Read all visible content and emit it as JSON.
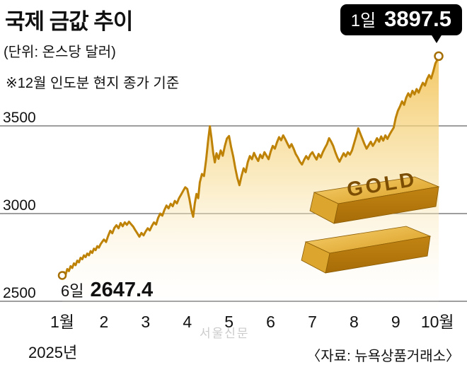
{
  "header": {
    "title": "국제 금값 추이",
    "unit": "(단위: 온스당 달러)",
    "note": "※12월 인도분 현지 종가 기준"
  },
  "callout": {
    "day": "1일",
    "value": "3897.5"
  },
  "start_label": {
    "day": "6일",
    "value": "2647.4"
  },
  "gold_bar_label": "GOLD",
  "watermark": "서울신문",
  "source": "〈자료: 뉴욕상품거래소〉",
  "axis": {
    "year_label": "2025년",
    "y_ticks": [
      {
        "label": "3500",
        "value": 3500
      },
      {
        "label": "3000",
        "value": 3000
      },
      {
        "label": "2500",
        "value": 2500
      }
    ],
    "x_ticks": [
      {
        "label": "1월",
        "month": 1
      },
      {
        "label": "2",
        "month": 2
      },
      {
        "label": "3",
        "month": 3
      },
      {
        "label": "4",
        "month": 4
      },
      {
        "label": "5",
        "month": 5
      },
      {
        "label": "6",
        "month": 6
      },
      {
        "label": "7",
        "month": 7
      },
      {
        "label": "8",
        "month": 8
      },
      {
        "label": "9",
        "month": 9
      },
      {
        "label": "10월",
        "month": 10
      }
    ]
  },
  "colors": {
    "line": "#BE8206",
    "marker_ring": "#A66F05",
    "callout_bg": "#000000",
    "area_top": "#F1BC45",
    "grid": "#3c3c3c"
  },
  "chart_data": {
    "type": "line",
    "title": "국제 금값 추이",
    "unit": "달러/온스 (12월 인도분 현지 종가)",
    "x_range_months": [
      1,
      10.03
    ],
    "ylim": [
      2450,
      3950
    ],
    "grid": true,
    "start_point": {
      "date": "1월 6일",
      "value": 2647.4
    },
    "end_point": {
      "date": "10월 1일",
      "value": 3897.5
    },
    "points": [
      [
        1,
        2647.4
      ],
      [
        1.04,
        2666
      ],
      [
        1.08,
        2652
      ],
      [
        1.12,
        2684
      ],
      [
        1.16,
        2672
      ],
      [
        1.2,
        2700
      ],
      [
        1.24,
        2690
      ],
      [
        1.28,
        2716
      ],
      [
        1.32,
        2706
      ],
      [
        1.36,
        2732
      ],
      [
        1.4,
        2722
      ],
      [
        1.44,
        2748
      ],
      [
        1.48,
        2740
      ],
      [
        1.52,
        2762
      ],
      [
        1.56,
        2752
      ],
      [
        1.6,
        2772
      ],
      [
        1.64,
        2762
      ],
      [
        1.68,
        2786
      ],
      [
        1.72,
        2776
      ],
      [
        1.76,
        2800
      ],
      [
        1.8,
        2792
      ],
      [
        1.84,
        2814
      ],
      [
        1.88,
        2806
      ],
      [
        1.92,
        2826
      ],
      [
        1.96,
        2840
      ],
      [
        2,
        2852
      ],
      [
        2.05,
        2838
      ],
      [
        2.1,
        2872
      ],
      [
        2.15,
        2902
      ],
      [
        2.2,
        2888
      ],
      [
        2.25,
        2918
      ],
      [
        2.3,
        2934
      ],
      [
        2.35,
        2916
      ],
      [
        2.4,
        2946
      ],
      [
        2.45,
        2928
      ],
      [
        2.5,
        2950
      ],
      [
        2.55,
        2936
      ],
      [
        2.6,
        2954
      ],
      [
        2.65,
        2940
      ],
      [
        2.7,
        2926
      ],
      [
        2.75,
        2906
      ],
      [
        2.8,
        2888
      ],
      [
        2.85,
        2868
      ],
      [
        2.9,
        2890
      ],
      [
        2.95,
        2876
      ],
      [
        3,
        2898
      ],
      [
        3.05,
        2916
      ],
      [
        3.1,
        2904
      ],
      [
        3.15,
        2930
      ],
      [
        3.2,
        2950
      ],
      [
        3.25,
        2938
      ],
      [
        3.3,
        2976
      ],
      [
        3.35,
        3000
      ],
      [
        3.4,
        2988
      ],
      [
        3.45,
        3020
      ],
      [
        3.5,
        3046
      ],
      [
        3.55,
        3030
      ],
      [
        3.6,
        3056
      ],
      [
        3.65,
        3042
      ],
      [
        3.7,
        3072
      ],
      [
        3.75,
        3058
      ],
      [
        3.8,
        3088
      ],
      [
        3.85,
        3108
      ],
      [
        3.9,
        3130
      ],
      [
        3.95,
        3150
      ],
      [
        4,
        3140
      ],
      [
        4.05,
        3084
      ],
      [
        4.1,
        3018
      ],
      [
        4.14,
        2982
      ],
      [
        4.18,
        3058
      ],
      [
        4.22,
        3112
      ],
      [
        4.26,
        3088
      ],
      [
        4.3,
        3178
      ],
      [
        4.35,
        3226
      ],
      [
        4.4,
        3214
      ],
      [
        4.45,
        3306
      ],
      [
        4.5,
        3418
      ],
      [
        4.54,
        3498
      ],
      [
        4.58,
        3430
      ],
      [
        4.62,
        3346
      ],
      [
        4.66,
        3292
      ],
      [
        4.7,
        3344
      ],
      [
        4.75,
        3312
      ],
      [
        4.8,
        3360
      ],
      [
        4.85,
        3330
      ],
      [
        4.9,
        3386
      ],
      [
        4.95,
        3428
      ],
      [
        5,
        3442
      ],
      [
        5.05,
        3380
      ],
      [
        5.1,
        3326
      ],
      [
        5.15,
        3260
      ],
      [
        5.2,
        3204
      ],
      [
        5.25,
        3162
      ],
      [
        5.3,
        3214
      ],
      [
        5.35,
        3258
      ],
      [
        5.4,
        3236
      ],
      [
        5.45,
        3294
      ],
      [
        5.5,
        3328
      ],
      [
        5.55,
        3310
      ],
      [
        5.6,
        3346
      ],
      [
        5.65,
        3320
      ],
      [
        5.7,
        3300
      ],
      [
        5.75,
        3336
      ],
      [
        5.8,
        3316
      ],
      [
        5.85,
        3350
      ],
      [
        5.9,
        3330
      ],
      [
        5.95,
        3310
      ],
      [
        6,
        3354
      ],
      [
        6.05,
        3386
      ],
      [
        6.1,
        3370
      ],
      [
        6.15,
        3406
      ],
      [
        6.2,
        3436
      ],
      [
        6.25,
        3418
      ],
      [
        6.3,
        3446
      ],
      [
        6.35,
        3424
      ],
      [
        6.4,
        3400
      ],
      [
        6.45,
        3376
      ],
      [
        6.5,
        3396
      ],
      [
        6.55,
        3370
      ],
      [
        6.6,
        3340
      ],
      [
        6.65,
        3320
      ],
      [
        6.7,
        3296
      ],
      [
        6.75,
        3280
      ],
      [
        6.8,
        3306
      ],
      [
        6.85,
        3328
      ],
      [
        6.9,
        3310
      ],
      [
        6.95,
        3336
      ],
      [
        7,
        3350
      ],
      [
        7.05,
        3328
      ],
      [
        7.1,
        3308
      ],
      [
        7.15,
        3340
      ],
      [
        7.2,
        3320
      ],
      [
        7.25,
        3350
      ],
      [
        7.3,
        3374
      ],
      [
        7.35,
        3396
      ],
      [
        7.4,
        3430
      ],
      [
        7.45,
        3410
      ],
      [
        7.5,
        3386
      ],
      [
        7.55,
        3350
      ],
      [
        7.6,
        3320
      ],
      [
        7.65,
        3296
      ],
      [
        7.7,
        3320
      ],
      [
        7.75,
        3344
      ],
      [
        7.8,
        3326
      ],
      [
        7.85,
        3350
      ],
      [
        7.9,
        3336
      ],
      [
        7.95,
        3360
      ],
      [
        8,
        3400
      ],
      [
        8.05,
        3440
      ],
      [
        8.1,
        3486
      ],
      [
        8.15,
        3456
      ],
      [
        8.2,
        3426
      ],
      [
        8.25,
        3396
      ],
      [
        8.3,
        3370
      ],
      [
        8.35,
        3390
      ],
      [
        8.4,
        3410
      ],
      [
        8.45,
        3386
      ],
      [
        8.5,
        3406
      ],
      [
        8.55,
        3430
      ],
      [
        8.6,
        3410
      ],
      [
        8.65,
        3440
      ],
      [
        8.7,
        3416
      ],
      [
        8.75,
        3446
      ],
      [
        8.8,
        3426
      ],
      [
        8.85,
        3450
      ],
      [
        8.9,
        3470
      ],
      [
        8.95,
        3490
      ],
      [
        9,
        3546
      ],
      [
        9.05,
        3586
      ],
      [
        9.1,
        3610
      ],
      [
        9.15,
        3640
      ],
      [
        9.2,
        3620
      ],
      [
        9.25,
        3660
      ],
      [
        9.3,
        3686
      ],
      [
        9.35,
        3666
      ],
      [
        9.4,
        3700
      ],
      [
        9.45,
        3680
      ],
      [
        9.5,
        3710
      ],
      [
        9.55,
        3690
      ],
      [
        9.6,
        3720
      ],
      [
        9.65,
        3746
      ],
      [
        9.7,
        3730
      ],
      [
        9.75,
        3766
      ],
      [
        9.8,
        3790
      ],
      [
        9.85,
        3770
      ],
      [
        9.9,
        3810
      ],
      [
        9.95,
        3856
      ],
      [
        10,
        3878
      ],
      [
        10.03,
        3897.5
      ]
    ]
  }
}
